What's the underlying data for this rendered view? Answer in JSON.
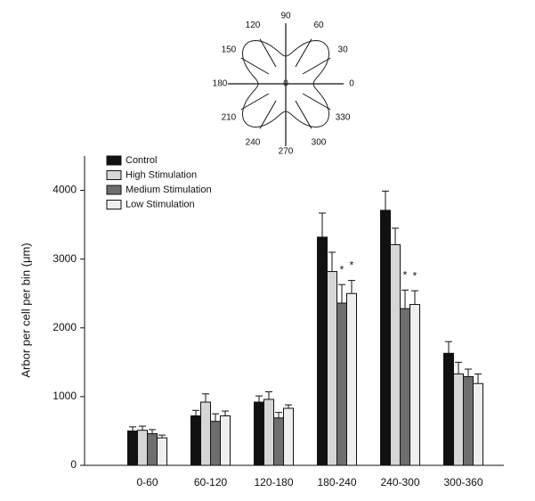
{
  "polar_inset": {
    "angle_labels": [
      90,
      60,
      30,
      0,
      330,
      300,
      270,
      240,
      210,
      180,
      150,
      120
    ],
    "center_label": "0"
  },
  "chart_data": {
    "type": "bar",
    "ylabel": "Arbor per cell per bin (μm)",
    "categories": [
      "0-60",
      "60-120",
      "120-180",
      "180-240",
      "240-300",
      "300-360"
    ],
    "series": [
      {
        "name": "Control",
        "color": "#111111",
        "values": [
          500,
          720,
          920,
          3320,
          3710,
          1630
        ],
        "errors": [
          60,
          80,
          90,
          350,
          280,
          170
        ]
      },
      {
        "name": "High Stimulation",
        "color": "#d6d6d6",
        "values": [
          510,
          920,
          960,
          2820,
          3210,
          1330
        ],
        "errors": [
          60,
          120,
          110,
          280,
          240,
          170
        ]
      },
      {
        "name": "Medium Stimulation",
        "color": "#6e6e6e",
        "values": [
          460,
          640,
          690,
          2360,
          2280,
          1290
        ],
        "errors": [
          60,
          110,
          80,
          270,
          270,
          110
        ]
      },
      {
        "name": "Low Stimulation",
        "color": "#efefef",
        "values": [
          400,
          720,
          830,
          2500,
          2340,
          1190
        ],
        "errors": [
          40,
          70,
          50,
          190,
          200,
          140
        ]
      }
    ],
    "annotations": [
      {
        "label": "*",
        "category": "180-240",
        "series": "Medium Stimulation"
      },
      {
        "label": "*",
        "category": "180-240",
        "series": "Low Stimulation"
      },
      {
        "label": "*",
        "category": "240-300",
        "series": "Medium Stimulation"
      },
      {
        "label": "*",
        "category": "240-300",
        "series": "Low Stimulation"
      }
    ],
    "ylim": [
      0,
      4500
    ],
    "yticks": [
      0,
      1000,
      2000,
      3000,
      4000
    ],
    "legend": "upper left",
    "grid": false
  }
}
